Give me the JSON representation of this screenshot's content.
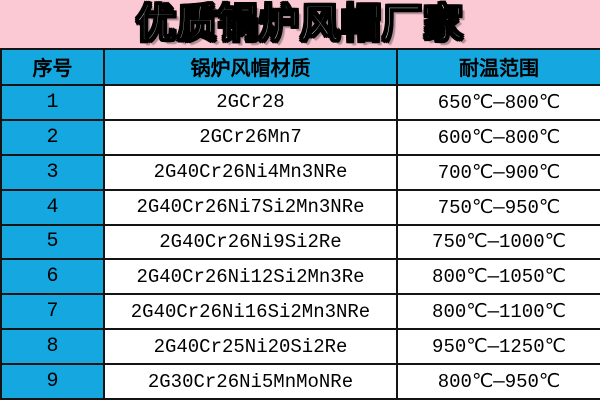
{
  "banner": {
    "title": "优质锅炉风帽厂家",
    "bg_color": "#fbc9d3"
  },
  "table": {
    "accent_color": "#14a7e0",
    "columns": {
      "index": "序号",
      "material": "锅炉风帽材质",
      "range": "耐温范围"
    },
    "rows": [
      {
        "index": "1",
        "material": "2GCr28",
        "range": "650℃—800℃"
      },
      {
        "index": "2",
        "material": "2GCr26Mn7",
        "range": "600℃—800℃"
      },
      {
        "index": "3",
        "material": "2G40Cr26Ni4Mn3NRe",
        "range": "700℃—900℃"
      },
      {
        "index": "4",
        "material": "2G40Cr26Ni7Si2Mn3NRe",
        "range": "750℃—950℃"
      },
      {
        "index": "5",
        "material": "2G40Cr26Ni9Si2Re",
        "range": "750℃—1000℃"
      },
      {
        "index": "6",
        "material": "2G40Cr26Ni12Si2Mn3Re",
        "range": "800℃—1050℃"
      },
      {
        "index": "7",
        "material": "2G40Cr26Ni16Si2Mn3NRe",
        "range": "800℃—1100℃"
      },
      {
        "index": "8",
        "material": "2G40Cr25Ni20Si2Re",
        "range": "950℃—1250℃"
      },
      {
        "index": "9",
        "material": "2G30Cr26Ni5MnMoNRe",
        "range": "800℃—950℃"
      }
    ]
  }
}
